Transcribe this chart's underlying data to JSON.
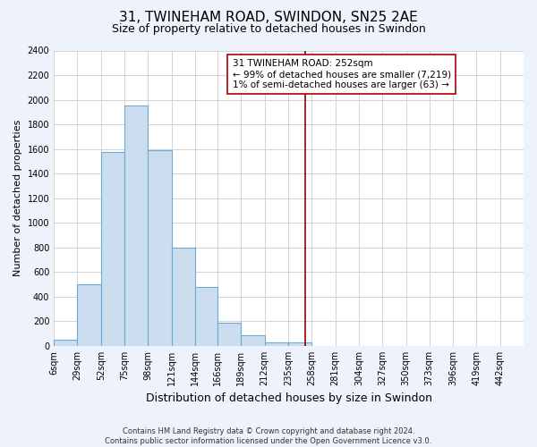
{
  "title": "31, TWINEHAM ROAD, SWINDON, SN25 2AE",
  "subtitle": "Size of property relative to detached houses in Swindon",
  "xlabel": "Distribution of detached houses by size in Swindon",
  "ylabel": "Number of detached properties",
  "footer_line1": "Contains HM Land Registry data © Crown copyright and database right 2024.",
  "footer_line2": "Contains public sector information licensed under the Open Government Licence v3.0.",
  "bar_edges": [
    6,
    29,
    52,
    75,
    98,
    121,
    144,
    166,
    189,
    212,
    235,
    258,
    281,
    304,
    327,
    350,
    373,
    396,
    419,
    442,
    465
  ],
  "bar_heights": [
    50,
    500,
    1575,
    1950,
    1590,
    800,
    480,
    185,
    90,
    30,
    30,
    0,
    0,
    0,
    0,
    0,
    0,
    0,
    0,
    0
  ],
  "bar_color": "#ccddf0",
  "bar_edge_color": "#6aaad4",
  "vline_x": 252,
  "vline_color": "#8b0000",
  "ylim": [
    0,
    2400
  ],
  "yticks": [
    0,
    200,
    400,
    600,
    800,
    1000,
    1200,
    1400,
    1600,
    1800,
    2000,
    2200,
    2400
  ],
  "annotation_title": "31 TWINEHAM ROAD: 252sqm",
  "annotation_line1": "← 99% of detached houses are smaller (7,219)",
  "annotation_line2": "1% of semi-detached houses are larger (63) →",
  "bg_color": "#eef2fa",
  "plot_bg_color": "#ffffff",
  "grid_color": "#cccccc",
  "title_fontsize": 11,
  "subtitle_fontsize": 9,
  "tick_label_fontsize": 7,
  "ylabel_fontsize": 8,
  "xlabel_fontsize": 9,
  "footer_fontsize": 6,
  "annotation_fontsize": 7.5
}
